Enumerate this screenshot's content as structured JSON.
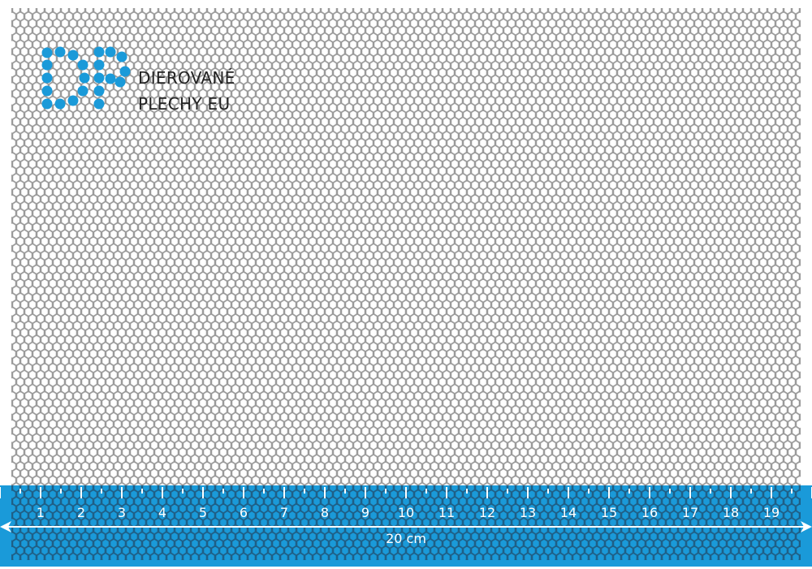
{
  "brand": {
    "line1": "DIEROVANÉ",
    "line2": "PLECHY EU",
    "logo_letters": "DP",
    "logo_color": "#1a9ad9"
  },
  "ruler": {
    "labels": [
      "1",
      "2",
      "3",
      "4",
      "5",
      "6",
      "7",
      "8",
      "9",
      "10",
      "11",
      "12",
      "13",
      "14",
      "15",
      "16",
      "17",
      "18",
      "19"
    ],
    "total_label": "20 cm",
    "color": "#1a9ad9"
  },
  "sheet": {
    "hole_shape": "hexagon",
    "stroke_color": "#9a9a9a"
  }
}
